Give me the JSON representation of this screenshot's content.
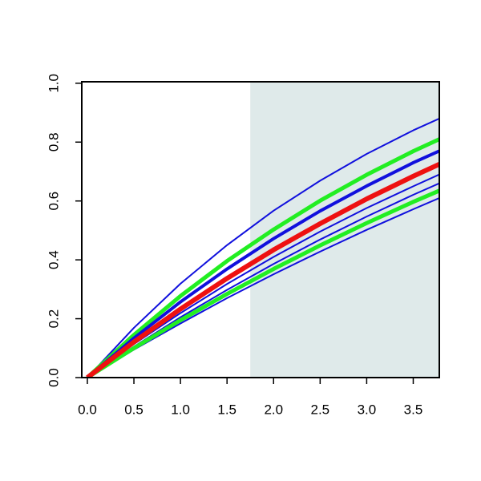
{
  "chart_data": {
    "type": "line",
    "x": [
      0,
      0.5,
      1,
      1.5,
      2,
      2.5,
      3,
      3.5,
      3.78
    ],
    "shade": {
      "from": 1.75,
      "to": 3.78,
      "color": "#dfeaea"
    },
    "series": [
      {
        "color": "#1010dd",
        "width": 2,
        "values": [
          0,
          0.169,
          0.319,
          0.45,
          0.567,
          0.669,
          0.76,
          0.84,
          0.88
        ]
      },
      {
        "color": "#1010dd",
        "width": 2,
        "values": [
          0,
          0.114,
          0.219,
          0.318,
          0.41,
          0.496,
          0.576,
          0.65,
          0.69
        ]
      },
      {
        "color": "#1010dd",
        "width": 2,
        "values": [
          0,
          0.105,
          0.205,
          0.298,
          0.386,
          0.469,
          0.547,
          0.621,
          0.66
        ]
      },
      {
        "color": "#1010dd",
        "width": 2,
        "values": [
          0,
          0.095,
          0.184,
          0.27,
          0.351,
          0.428,
          0.502,
          0.572,
          0.61
        ]
      },
      {
        "color": "#22ee22",
        "width": 5,
        "values": [
          0,
          0.145,
          0.277,
          0.396,
          0.503,
          0.601,
          0.689,
          0.769,
          0.81
        ]
      },
      {
        "color": "#22ee22",
        "width": 5,
        "values": [
          0,
          0.1,
          0.195,
          0.284,
          0.369,
          0.449,
          0.525,
          0.597,
          0.635
        ]
      },
      {
        "color": "#1010dd",
        "width": 4,
        "values": [
          0,
          0.134,
          0.257,
          0.369,
          0.472,
          0.566,
          0.651,
          0.73,
          0.77
        ]
      },
      {
        "color": "#ee1111",
        "width": 6,
        "values": [
          0,
          0.121,
          0.233,
          0.337,
          0.434,
          0.523,
          0.607,
          0.684,
          0.725
        ]
      }
    ],
    "xlim": [
      -0.06,
      3.78
    ],
    "ylim": [
      0,
      1.005
    ],
    "xticks": [
      {
        "value": 0,
        "label": "0.0"
      },
      {
        "value": 0.5,
        "label": "0.5"
      },
      {
        "value": 1,
        "label": "1.0"
      },
      {
        "value": 1.5,
        "label": "1.5"
      },
      {
        "value": 2,
        "label": "2.0"
      },
      {
        "value": 2.5,
        "label": "2.5"
      },
      {
        "value": 3,
        "label": "3.0"
      },
      {
        "value": 3.5,
        "label": "3.5"
      }
    ],
    "yticks": [
      {
        "value": 0,
        "label": "0.0"
      },
      {
        "value": 0.2,
        "label": "0.2"
      },
      {
        "value": 0.4,
        "label": "0.4"
      },
      {
        "value": 0.6,
        "label": "0.6"
      },
      {
        "value": 0.8,
        "label": "0.8"
      },
      {
        "value": 1,
        "label": "1.0"
      }
    ]
  }
}
